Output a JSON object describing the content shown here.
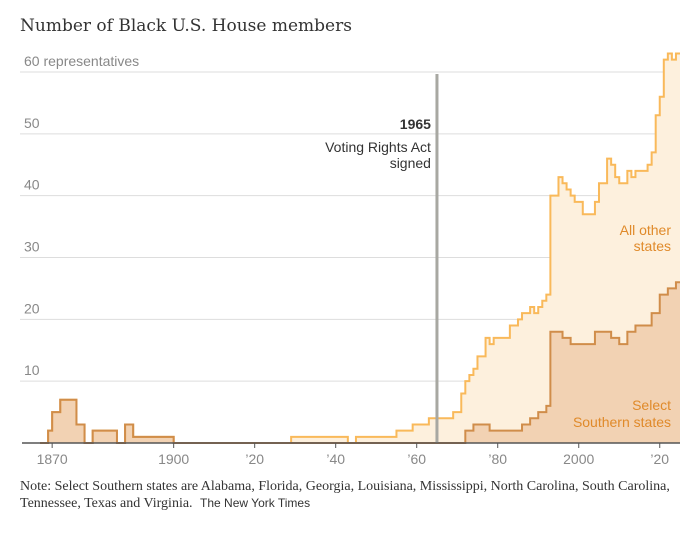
{
  "title": "Number of Black U.S. House members",
  "note": "Note: Select Southern states are Alabama, Florida, Georgia, Louisiana, Mississippi, North Carolina, South Carolina, Tennessee, Texas and Virginia.",
  "credit": "The New York Times",
  "colors": {
    "southern_line": "#d08d4a",
    "southern_fill": "#f2d2b3",
    "other_line": "#f9b95a",
    "other_fill": "#fdf0dd",
    "annotation_line": "#a8a8a2",
    "grid": "#dddddd",
    "axis_text": "#888888",
    "label_other": "#e08a2a",
    "label_southern": "#e08a2a"
  },
  "chart_data": {
    "type": "area",
    "stacked": true,
    "step": true,
    "xlim": [
      1867,
      2025
    ],
    "ylim": [
      0,
      60
    ],
    "y_ticks": [
      10,
      20,
      30,
      40,
      50,
      60
    ],
    "y_tick_labels": [
      "10",
      "20",
      "30",
      "40",
      "50",
      "60 representatives"
    ],
    "x_ticks": [
      1870,
      1900,
      1920,
      1940,
      1960,
      1980,
      2000,
      2020
    ],
    "x_tick_labels": [
      "1870",
      "1900",
      "’20",
      "’40",
      "’60",
      "’80",
      "2000",
      "’20"
    ],
    "grid": true,
    "annotation": {
      "x": 1965,
      "year_label": "1965",
      "text_lines": [
        "Voting Rights Act",
        "signed"
      ]
    },
    "series": [
      {
        "key": "southern",
        "name_lines": [
          "Select",
          "Southern states"
        ],
        "points": [
          [
            1869,
            2
          ],
          [
            1870,
            5
          ],
          [
            1872,
            7
          ],
          [
            1876,
            3
          ],
          [
            1878,
            0
          ],
          [
            1880,
            2
          ],
          [
            1886,
            0
          ],
          [
            1888,
            3
          ],
          [
            1890,
            1
          ],
          [
            1900,
            0
          ],
          [
            1972,
            2
          ],
          [
            1974,
            3
          ],
          [
            1978,
            2
          ],
          [
            1986,
            3
          ],
          [
            1988,
            4
          ],
          [
            1990,
            5
          ],
          [
            1992,
            6
          ],
          [
            1993,
            18
          ],
          [
            1996,
            17
          ],
          [
            1998,
            16
          ],
          [
            2004,
            18
          ],
          [
            2008,
            17
          ],
          [
            2010,
            16
          ],
          [
            2012,
            18
          ],
          [
            2014,
            19
          ],
          [
            2018,
            21
          ],
          [
            2020,
            24
          ],
          [
            2022,
            25
          ],
          [
            2024,
            26
          ],
          [
            2025,
            26
          ]
        ]
      },
      {
        "key": "other",
        "name_lines": [
          "All other",
          "states"
        ],
        "points": [
          [
            1867,
            0
          ],
          [
            1929,
            1
          ],
          [
            1943,
            0
          ],
          [
            1945,
            1
          ],
          [
            1955,
            2
          ],
          [
            1957,
            2
          ],
          [
            1959,
            3
          ],
          [
            1963,
            4
          ],
          [
            1969,
            5
          ],
          [
            1971,
            8
          ],
          [
            1973,
            9
          ],
          [
            1975,
            11
          ],
          [
            1977,
            14
          ],
          [
            1979,
            15
          ],
          [
            1983,
            17
          ],
          [
            1985,
            18
          ],
          [
            1987,
            18
          ],
          [
            1989,
            17
          ],
          [
            1991,
            18
          ],
          [
            1993,
            22
          ],
          [
            1995,
            25
          ],
          [
            1997,
            24
          ],
          [
            1999,
            23
          ],
          [
            2001,
            21
          ],
          [
            2003,
            21
          ],
          [
            2005,
            24
          ],
          [
            2007,
            28
          ],
          [
            2009,
            26
          ],
          [
            2011,
            26
          ],
          [
            2013,
            25
          ],
          [
            2015,
            25
          ],
          [
            2017,
            26
          ],
          [
            2019,
            32
          ],
          [
            2021,
            38
          ],
          [
            2023,
            37
          ],
          [
            2025,
            37
          ]
        ]
      }
    ]
  }
}
